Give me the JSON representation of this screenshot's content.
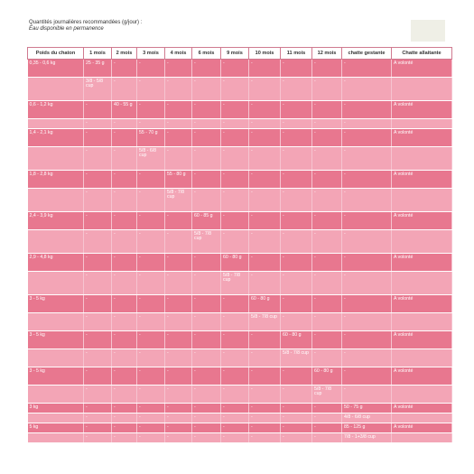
{
  "intro": {
    "title": "Quantités journalières recommandées (g/jour) :",
    "subtitle": "Eau disponible en permanence"
  },
  "table": {
    "headers": [
      "Poids du chaton",
      "1 mois",
      "2 mois",
      "3 mois",
      "4 mois",
      "6 mois",
      "9 mois",
      "10 mois",
      "11 mois",
      "12 mois",
      "chatte gestante",
      "Chatte allaitante"
    ],
    "rows": [
      {
        "tone": "dark",
        "size": "normal",
        "cells": [
          "0,35 - 0,6 kg",
          "25 - 35 g",
          "-",
          "-",
          "-",
          "-",
          "-",
          "-",
          "-",
          "-",
          "-",
          "A volonté"
        ]
      },
      {
        "tone": "light",
        "size": "tall",
        "cells": [
          "",
          "3/8 - 5/8 cup",
          "-",
          "-",
          "-",
          "-",
          "-",
          "-",
          "-",
          "-",
          "-",
          ""
        ]
      },
      {
        "tone": "dark",
        "size": "normal",
        "cells": [
          "0,6 - 1,2 kg",
          "-",
          "40 - 55 g",
          "-",
          "-",
          "-",
          "-",
          "-",
          "-",
          "-",
          "-",
          "A volonté"
        ]
      },
      {
        "tone": "light",
        "size": "short",
        "cells": [
          "",
          "-",
          "-",
          "-",
          "-",
          "-",
          "-",
          "-",
          "-",
          "-",
          "-",
          ""
        ]
      },
      {
        "tone": "dark",
        "size": "normal",
        "cells": [
          "1,4 - 2,1 kg",
          "-",
          "-",
          "55 - 70 g",
          "-",
          "-",
          "-",
          "-",
          "-",
          "-",
          "-",
          "A volonté"
        ]
      },
      {
        "tone": "light",
        "size": "tall",
        "cells": [
          "",
          "-",
          "-",
          "5/8 - 6/8 cup",
          "-",
          "-",
          "-",
          "-",
          "-",
          "-",
          "-",
          ""
        ]
      },
      {
        "tone": "dark",
        "size": "normal",
        "cells": [
          "1,8 - 2,8 kg",
          "-",
          "-",
          "-",
          "55 - 80 g",
          "-",
          "-",
          "-",
          "-",
          "-",
          "-",
          "A volonté"
        ]
      },
      {
        "tone": "light",
        "size": "tall",
        "cells": [
          "",
          "-",
          "-",
          "-",
          "5/8 - 7/8 cup",
          "-",
          "-",
          "-",
          "-",
          "-",
          "-",
          ""
        ]
      },
      {
        "tone": "dark",
        "size": "normal",
        "cells": [
          "2,4 - 3,9 kg",
          "-",
          "-",
          "-",
          "-",
          "60 - 85 g",
          "-",
          "-",
          "-",
          "-",
          "-",
          "A volonté"
        ]
      },
      {
        "tone": "light",
        "size": "tall",
        "cells": [
          "",
          "-",
          "-",
          "-",
          "-",
          "5/8 - 7/8 cup",
          "-",
          "-",
          "-",
          "-",
          "-",
          ""
        ]
      },
      {
        "tone": "dark",
        "size": "normal",
        "cells": [
          "2,9 - 4,8 kg",
          "-",
          "-",
          "-",
          "-",
          "-",
          "60 - 80 g",
          "-",
          "-",
          "-",
          "-",
          "A volonté"
        ]
      },
      {
        "tone": "light",
        "size": "tall",
        "cells": [
          "",
          "-",
          "-",
          "-",
          "-",
          "-",
          "5/8 - 7/8 cup",
          "-",
          "-",
          "-",
          "-",
          ""
        ]
      },
      {
        "tone": "dark",
        "size": "normal",
        "cells": [
          "3 - 5 kg",
          "-",
          "-",
          "-",
          "-",
          "-",
          "-",
          "60 - 80 g",
          "-",
          "-",
          "-",
          "A volonté"
        ]
      },
      {
        "tone": "light",
        "size": "normal",
        "cells": [
          "",
          "-",
          "-",
          "-",
          "-",
          "-",
          "-",
          "5/8 - 7/8 cup",
          "-",
          "-",
          "-",
          ""
        ]
      },
      {
        "tone": "dark",
        "size": "normal",
        "cells": [
          "3 - 5 kg",
          "-",
          "-",
          "-",
          "-",
          "-",
          "-",
          "-",
          "60 - 80 g",
          "-",
          "-",
          "A volonté"
        ]
      },
      {
        "tone": "light",
        "size": "normal",
        "cells": [
          "",
          "-",
          "-",
          "-",
          "-",
          "-",
          "-",
          "-",
          "5/8 - 7/8 cup",
          "-",
          "-",
          ""
        ]
      },
      {
        "tone": "dark",
        "size": "normal",
        "cells": [
          "3 - 5 kg",
          "-",
          "-",
          "-",
          "-",
          "-",
          "-",
          "-",
          "-",
          "60 - 80 g",
          "-",
          "A volonté"
        ]
      },
      {
        "tone": "light",
        "size": "normal",
        "cells": [
          "",
          "-",
          "-",
          "-",
          "-",
          "-",
          "-",
          "-",
          "-",
          "5/8 - 7/8 cup",
          "-",
          ""
        ]
      },
      {
        "tone": "dark",
        "size": "short",
        "cells": [
          "3 kg",
          "-",
          "-",
          "-",
          "-",
          "-",
          "-",
          "-",
          "-",
          "-",
          "50 - 75 g",
          "A volonté"
        ]
      },
      {
        "tone": "light",
        "size": "short",
        "cells": [
          "",
          "-",
          "-",
          "-",
          "-",
          "-",
          "-",
          "-",
          "-",
          "-",
          "4/8 - 6/8 cup",
          ""
        ]
      },
      {
        "tone": "dark",
        "size": "short",
        "cells": [
          "5 kg",
          "-",
          "-",
          "-",
          "-",
          "-",
          "-",
          "-",
          "-",
          "-",
          "85 - 125 g",
          "A volonté"
        ]
      },
      {
        "tone": "light",
        "size": "short",
        "cells": [
          "",
          "-",
          "-",
          "-",
          "-",
          "-",
          "-",
          "-",
          "-",
          "-",
          "7/8 - 1+3/8 cup",
          ""
        ]
      }
    ]
  },
  "colors": {
    "header_border": "#d07a90",
    "row_dark": "#e8778f",
    "row_light": "#f3a5b6"
  }
}
